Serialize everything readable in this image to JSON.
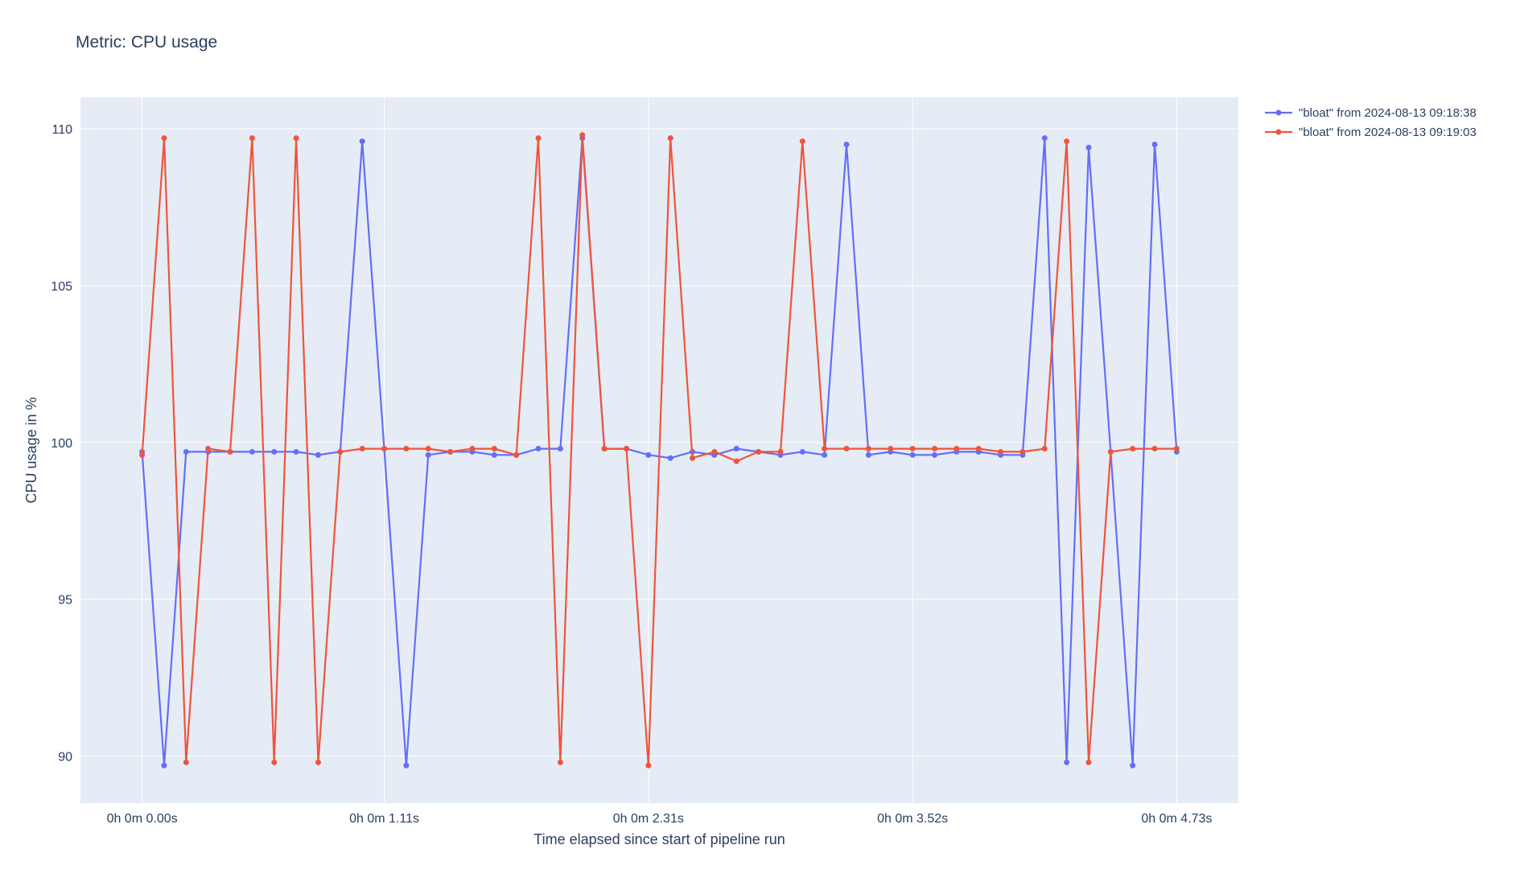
{
  "chart_data": {
    "type": "line",
    "title": "Metric: CPU usage",
    "xlabel": "Time elapsed since start of pipeline run",
    "ylabel": "CPU usage in %",
    "x_tick_labels": [
      "0h 0m 0.00s",
      "0h 0m 1.11s",
      "0h 0m 2.31s",
      "0h 0m 3.52s",
      "0h 0m 4.73s"
    ],
    "x_tick_index": [
      0,
      11,
      23,
      35,
      47
    ],
    "y_ticks": [
      90,
      95,
      100,
      105,
      110
    ],
    "ylim": [
      88.5,
      111
    ],
    "xlim": [
      -2.8,
      49.8
    ],
    "grid": true,
    "legend_position": "top-right",
    "series": [
      {
        "name": "\"bloat\" from 2024-08-13 09:18:38",
        "color": "#636efa",
        "values": [
          99.7,
          89.7,
          99.7,
          99.7,
          99.7,
          99.7,
          99.7,
          99.7,
          99.6,
          99.7,
          109.6,
          99.8,
          89.7,
          99.6,
          99.7,
          99.7,
          99.6,
          99.6,
          99.8,
          99.8,
          109.7,
          99.8,
          99.8,
          99.6,
          99.5,
          99.7,
          99.6,
          99.8,
          99.7,
          99.6,
          99.7,
          99.6,
          109.5,
          99.6,
          99.7,
          99.6,
          99.6,
          99.7,
          99.7,
          99.6,
          99.6,
          109.7,
          89.8,
          109.4,
          99.7,
          89.7,
          109.5,
          99.7
        ]
      },
      {
        "name": "\"bloat\" from 2024-08-13 09:19:03",
        "color": "#ef553b",
        "values": [
          99.6,
          109.7,
          89.8,
          99.8,
          99.7,
          109.7,
          89.8,
          109.7,
          89.8,
          99.7,
          99.8,
          99.8,
          99.8,
          99.8,
          99.7,
          99.8,
          99.8,
          99.6,
          109.7,
          89.8,
          109.8,
          99.8,
          99.8,
          89.7,
          109.7,
          99.5,
          99.7,
          99.4,
          99.7,
          99.7,
          109.6,
          99.8,
          99.8,
          99.8,
          99.8,
          99.8,
          99.8,
          99.8,
          99.8,
          99.7,
          99.7,
          99.8,
          109.6,
          89.8,
          99.7,
          99.8,
          99.8,
          99.8
        ]
      }
    ]
  }
}
